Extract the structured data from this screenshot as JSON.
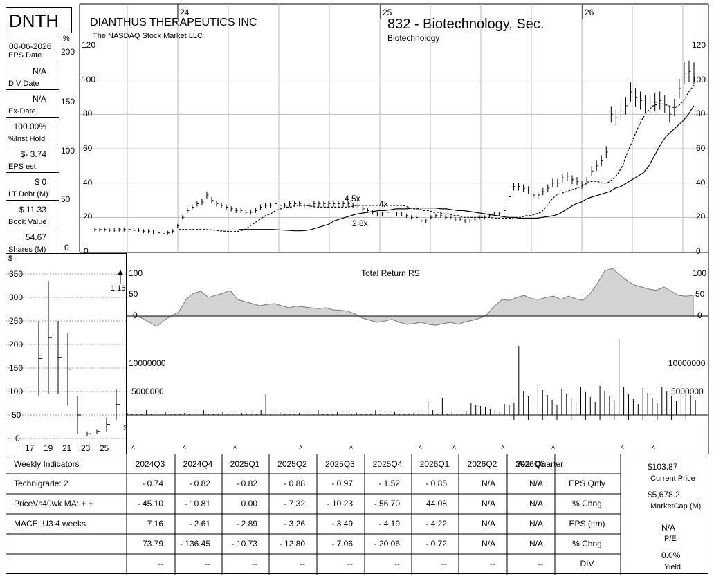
{
  "header": {
    "ticker": "DNTH",
    "company": "DIANTHUS THERAPEUTICS INC",
    "exchange": "The NASDAQ Stock Market LLC",
    "industry_group": "832 - Biotechnology, Sec.",
    "sector": "Biotechnology",
    "pct_symbol": "%",
    "dollar_symbol": "$"
  },
  "side_stats": [
    {
      "value": "08-06-2026",
      "label": "EPS Date"
    },
    {
      "value": "N/A",
      "label": "DIV Date"
    },
    {
      "value": "N/A",
      "label": "Ex-Date"
    },
    {
      "value": "100.00%",
      "label": "%Inst Hold"
    },
    {
      "value": "$- 3.74",
      "label": "EPS est."
    },
    {
      "value": "$ 0",
      "label": "LT Debt (M)"
    },
    {
      "value": "$ 11.33",
      "label": "Book Value"
    },
    {
      "value": "54.67",
      "label": "Shares (M)"
    }
  ],
  "pct_axis": [
    "200",
    "150",
    "100",
    "50",
    "0"
  ],
  "price_axis": [
    "120",
    "100",
    "80",
    "60",
    "40",
    "20",
    "0"
  ],
  "year_markers": [
    "24",
    "25",
    "26"
  ],
  "rs_axis": [
    "100",
    "50",
    "0"
  ],
  "volume_labels": [
    "10000000",
    "5000000"
  ],
  "labels": {
    "total_return_rs": "Total Return RS",
    "split": "1:16",
    "vol_4_5x": "4.5x",
    "vol_4x": "4x",
    "vol_2_8x": "2.8x",
    "inset_two": "2"
  },
  "inset_chart": {
    "y_ticks": [
      "350",
      "300",
      "250",
      "200",
      "150",
      "100",
      "50",
      "0"
    ],
    "x_ticks": [
      "17",
      "19",
      "21",
      "23",
      "25"
    ]
  },
  "table": {
    "header_left": "Weekly Indicators",
    "quarters": [
      "2024Q3",
      "2024Q4",
      "2025Q1",
      "2025Q2",
      "2025Q3",
      "2025Q4",
      "2026Q1",
      "2026Q2",
      "2026Q3"
    ],
    "row_labels_left": [
      "Technigrade: 2",
      "PriceVs40wk MA:  + +",
      "MACE: U3  4 weeks",
      "",
      ""
    ],
    "col_header_right": "Year Quarter",
    "row_labels_right": [
      "EPS Qrtly",
      "% Chng",
      "EPS (ttm)",
      "% Chng",
      "DIV"
    ],
    "rows": [
      [
        "- 0.74",
        "- 0.82",
        "- 0.82",
        "- 0.88",
        "- 0.97",
        "- 1.52",
        "- 0.85",
        "N/A",
        "N/A"
      ],
      [
        "- 45.10",
        "- 10.81",
        "0.00",
        "- 7.32",
        "- 10.23",
        "- 56.70",
        "44.08",
        "N/A",
        "N/A"
      ],
      [
        "7.16",
        "- 2.61",
        "- 2.89",
        "- 3.26",
        "- 3.49",
        "- 4.19",
        "- 4.22",
        "N/A",
        "N/A"
      ],
      [
        "73.79",
        "- 136.45",
        "- 10.73",
        "- 12.80",
        "- 7.06",
        "- 20.06",
        "- 0.72",
        "N/A",
        "N/A"
      ],
      [
        "--",
        "--",
        "--",
        "--",
        "--",
        "--",
        "--",
        "--",
        "--"
      ]
    ],
    "summary": {
      "price": "$103.87",
      "price_label": "Current Price",
      "mcap": "$5,678.2",
      "mcap_label": "MarketCap (M)",
      "pe": "N/A",
      "pe_label": "P/E",
      "yield": "0.0%",
      "yield_label": "Yield"
    }
  },
  "chart_data": {
    "type": "line",
    "title": "DIANTHUS THERAPEUTICS INC",
    "ylim": [
      0,
      120
    ],
    "x_period": "2023-07 to 2026-07 (weekly)",
    "price_close": [
      13,
      13,
      13,
      12.5,
      12.5,
      13,
      13,
      13,
      12.5,
      12.5,
      12,
      12,
      11.5,
      11,
      10.5,
      11,
      12,
      15,
      20,
      24,
      26,
      28,
      29,
      33,
      30,
      28,
      27,
      26,
      25,
      24,
      24,
      23,
      23,
      24,
      26,
      27,
      27,
      28,
      27,
      27,
      28,
      28,
      28,
      27,
      27,
      28,
      28,
      28,
      28,
      28,
      28,
      28,
      28,
      27,
      27,
      25,
      24,
      23,
      22,
      22,
      23,
      22,
      22,
      22,
      21,
      20,
      20,
      18,
      18,
      20,
      21,
      21,
      20,
      20,
      19,
      19,
      18,
      18,
      19,
      20,
      20,
      21,
      22,
      22,
      24,
      32,
      38,
      38,
      37,
      36,
      33,
      33,
      35,
      37,
      40,
      40,
      43,
      44,
      42,
      41,
      39,
      41,
      47,
      50,
      53,
      58,
      80,
      78,
      82,
      85,
      93,
      90,
      88,
      86,
      86,
      87,
      88,
      86,
      80,
      84,
      95,
      104,
      105,
      104
    ],
    "ma_short": [
      13,
      13,
      13,
      13,
      13,
      13,
      12.8,
      12.6,
      12.2,
      12,
      11.8,
      11.8,
      12,
      13,
      15,
      17,
      19,
      21,
      22,
      24,
      25,
      26,
      26,
      27,
      27,
      27,
      26.5,
      26,
      26,
      26,
      26,
      26,
      26,
      26,
      26.5,
      27,
      27,
      27,
      27,
      27,
      27,
      27,
      27,
      27,
      27,
      26,
      25,
      25,
      24,
      24,
      23,
      23,
      22,
      22,
      21,
      21,
      20,
      20,
      20,
      20,
      20,
      20,
      19.5,
      19.5,
      19.5,
      19.5,
      20,
      20,
      21,
      21,
      22,
      23,
      26,
      30,
      33,
      34,
      35,
      36,
      37,
      38,
      40,
      41,
      41,
      40,
      40,
      42,
      45,
      50,
      58,
      65,
      72,
      78,
      82,
      85,
      86,
      86,
      85,
      84,
      85,
      88,
      93,
      97
    ],
    "ma_long": [
      13,
      13,
      13,
      13,
      13,
      13,
      13,
      12.8,
      12.6,
      12.4,
      12.2,
      12.2,
      12.4,
      13,
      14,
      15,
      16,
      18,
      19,
      20,
      21,
      22,
      22.5,
      23,
      23.5,
      24,
      24,
      24.5,
      25,
      25,
      25,
      25.5,
      25.5,
      25.5,
      25.5,
      25.5,
      25,
      25,
      24.5,
      24,
      24,
      23.5,
      23,
      22.5,
      22,
      21.5,
      21,
      20.5,
      20,
      20,
      19.5,
      19.5,
      19.5,
      19.5,
      20,
      20.5,
      21,
      22,
      24,
      26,
      28,
      29,
      31,
      32,
      33,
      34,
      35,
      37,
      38,
      40,
      42,
      44,
      46,
      50,
      56,
      62,
      67,
      70,
      73,
      76,
      80,
      85
    ]
  }
}
